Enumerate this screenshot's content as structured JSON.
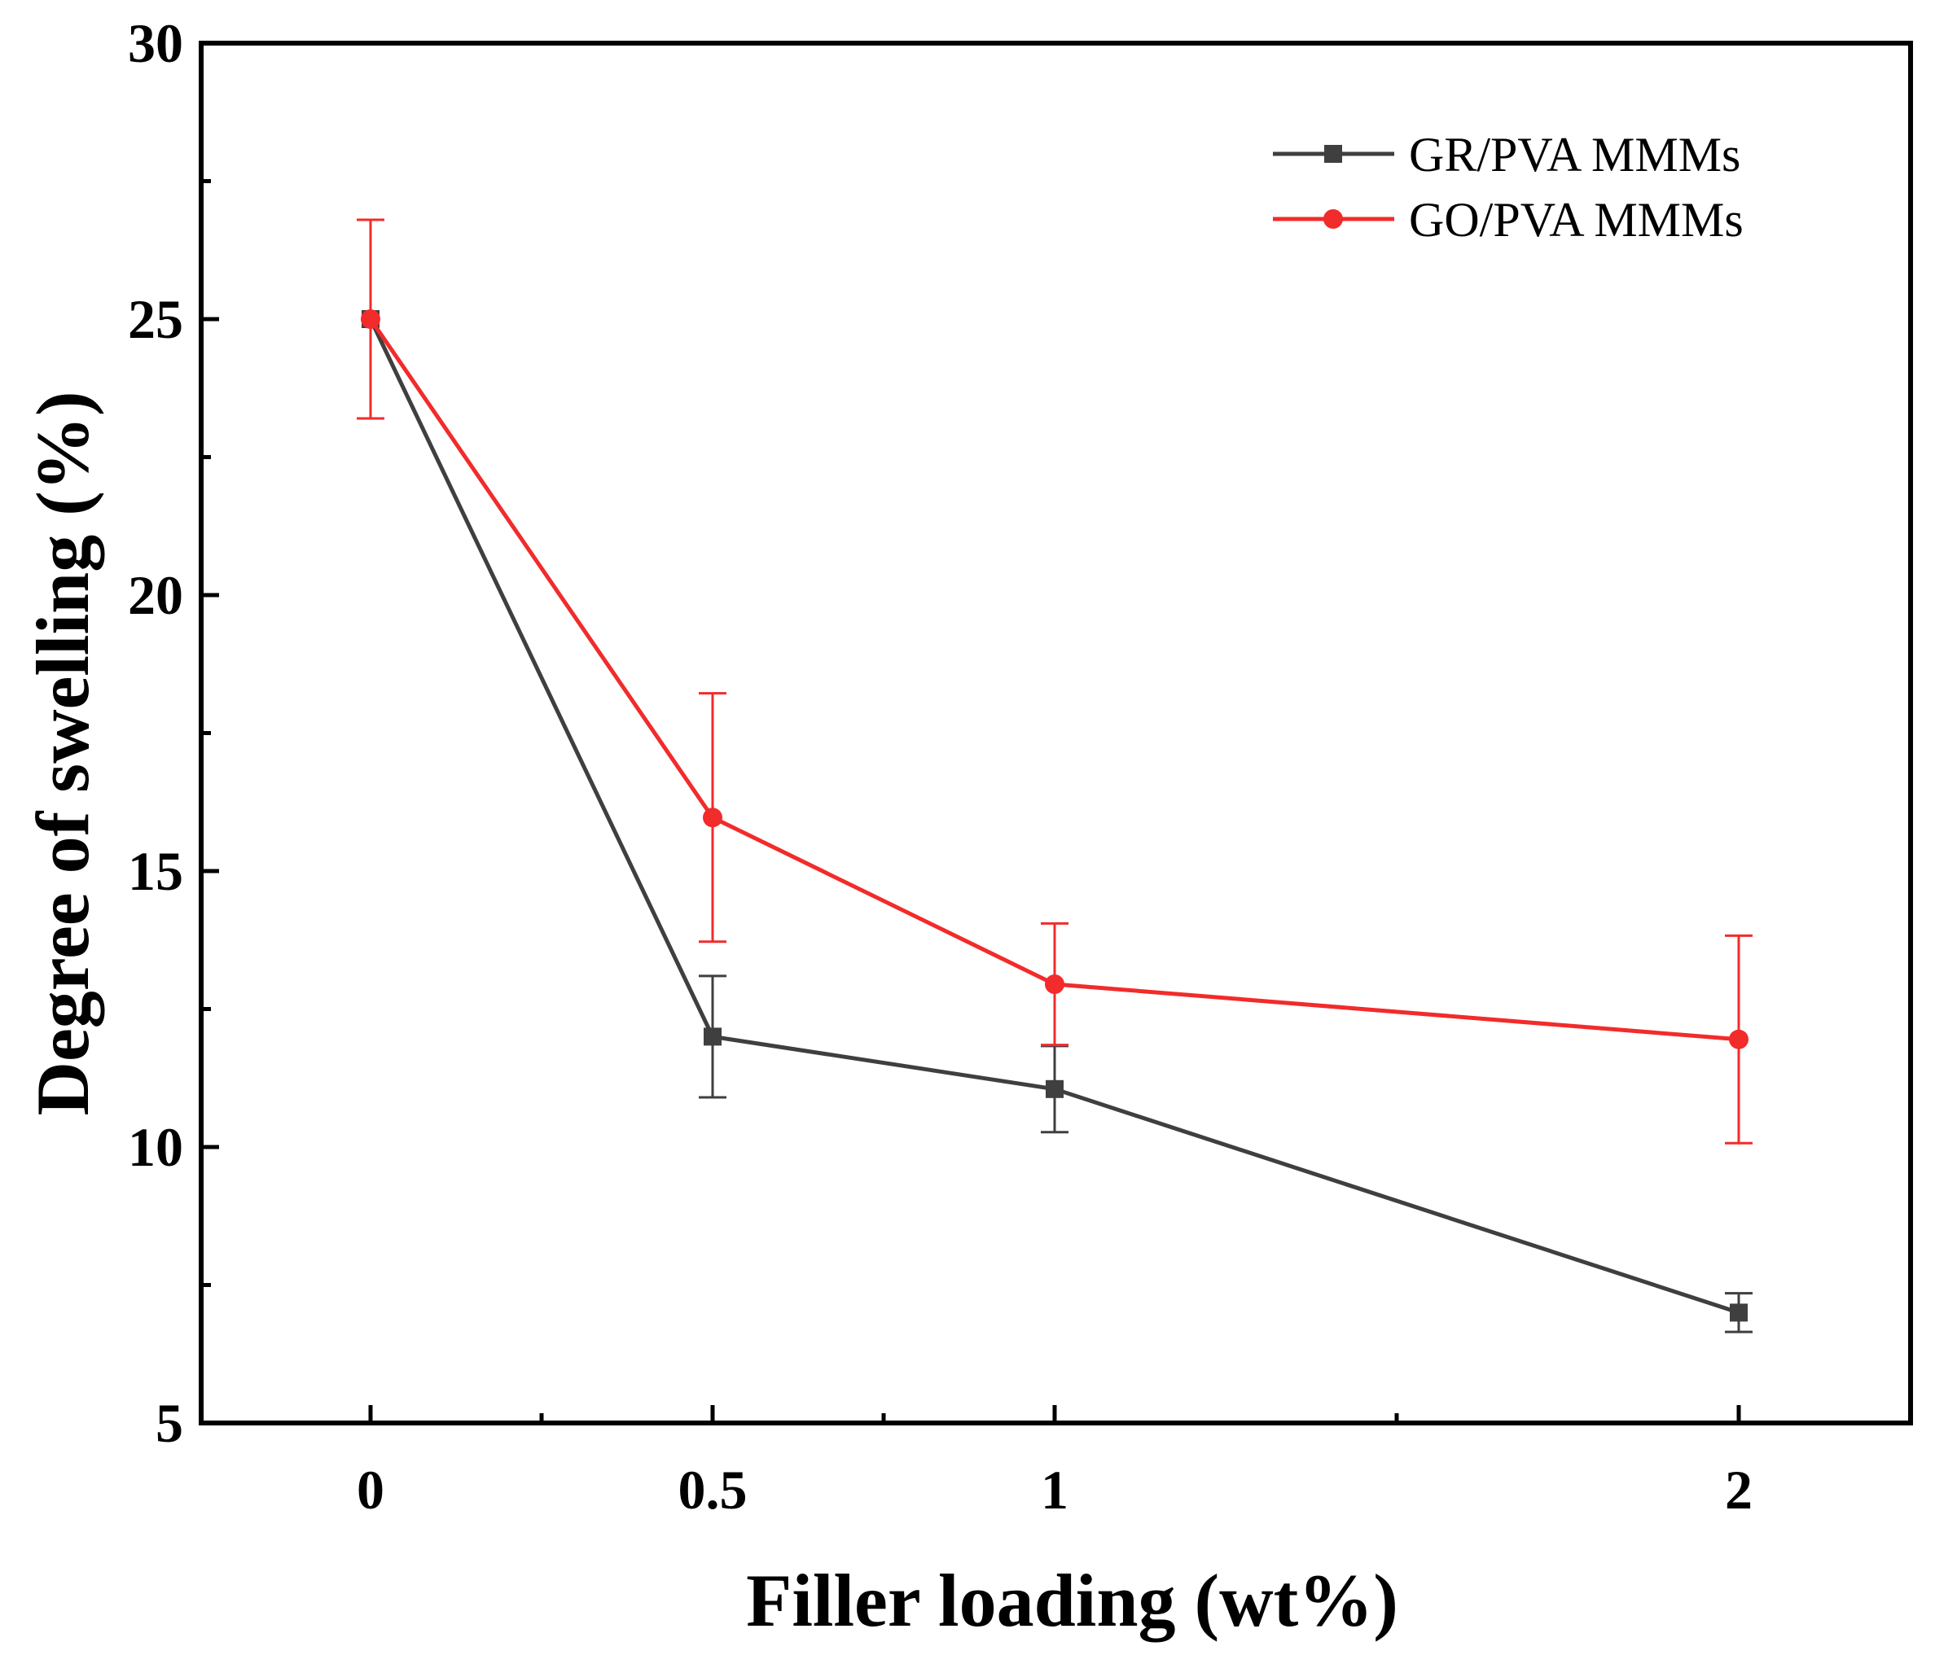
{
  "chart_data": {
    "type": "line",
    "title": "",
    "xlabel": "Filler loading (wt%)",
    "ylabel": "Degree of swelling (%)",
    "categories": [
      "0",
      "0.5",
      "1",
      "2"
    ],
    "ylim": [
      5,
      30
    ],
    "yticks": [
      5,
      10,
      15,
      20,
      25,
      30
    ],
    "grid": false,
    "legend_position": "top-right",
    "series": [
      {
        "name": "GR/PVA MMMs",
        "color": "#3f3f3f",
        "marker": "square",
        "values": [
          25.0,
          12.0,
          11.05,
          7.0
        ],
        "errors": [
          0.0,
          1.1,
          0.78,
          0.35
        ]
      },
      {
        "name": "GO/PVA MMMs",
        "color": "#f22b2b",
        "marker": "circle",
        "values": [
          25.0,
          15.97,
          12.95,
          11.95
        ],
        "errors": [
          1.8,
          2.25,
          1.1,
          1.88
        ]
      }
    ]
  }
}
